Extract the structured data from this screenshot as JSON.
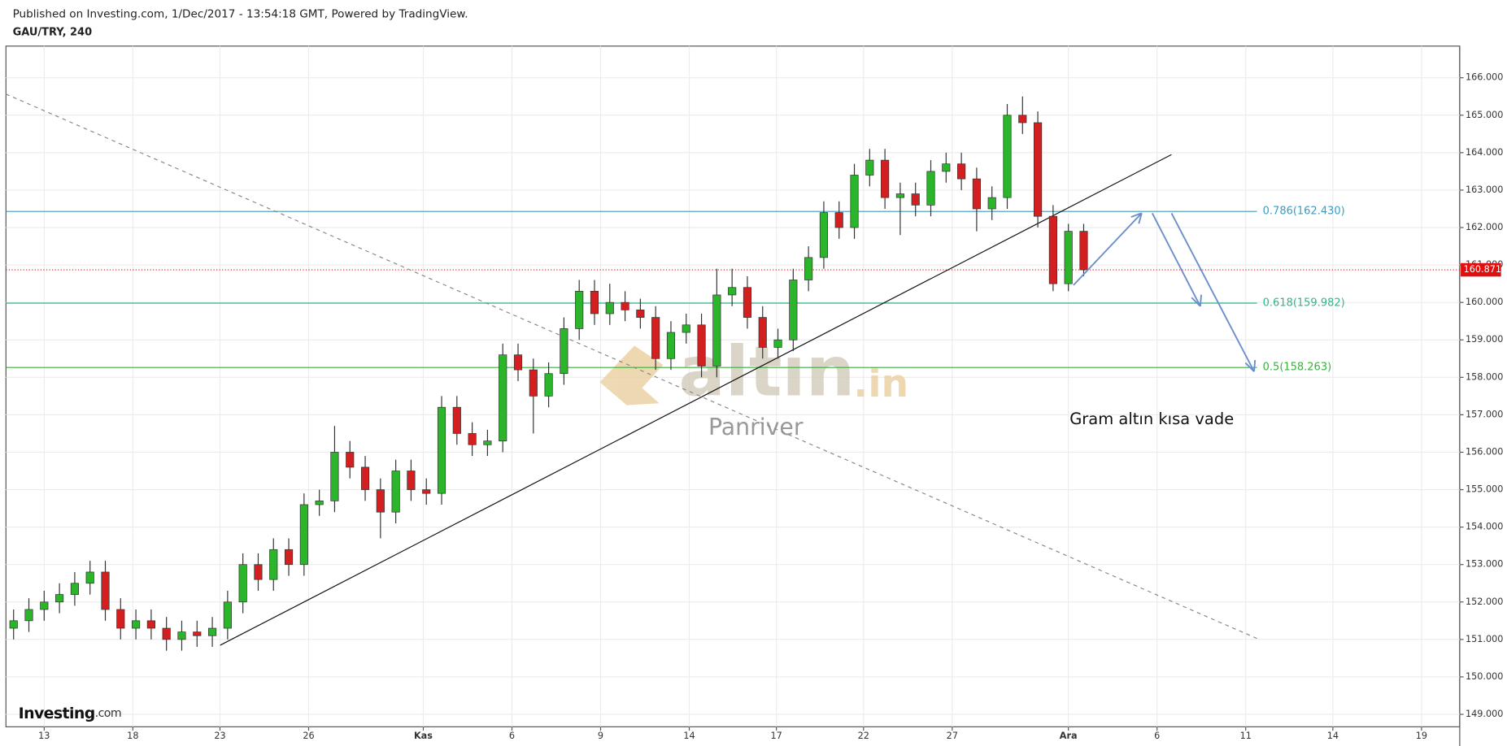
{
  "header": {
    "published": "Published on Investing.com, 1/Dec/2017 - 13:54:18 GMT, Powered by TradingView.",
    "symbol": "GAU/TRY, 240"
  },
  "chart_data": {
    "type": "candlestick",
    "x": [
      -2,
      -1,
      0,
      1,
      2,
      3,
      4,
      5,
      6,
      7,
      8,
      9,
      10,
      11,
      12,
      13,
      14,
      15,
      16,
      17,
      18,
      19,
      20,
      21,
      22,
      23,
      24,
      25,
      26,
      27,
      28,
      29,
      30,
      31,
      32,
      33,
      34,
      35,
      36,
      37,
      38,
      39,
      40,
      41,
      42,
      43,
      44,
      45,
      46,
      47,
      48,
      49,
      50,
      51,
      52,
      53,
      54,
      55,
      56,
      57,
      58,
      59,
      60,
      61,
      62,
      63,
      64,
      65,
      66,
      67,
      68
    ],
    "open": [
      151.3,
      151.5,
      151.8,
      152.0,
      152.2,
      152.5,
      152.8,
      151.8,
      151.3,
      151.5,
      151.3,
      151.0,
      151.2,
      151.1,
      151.3,
      152.0,
      153.0,
      152.6,
      153.4,
      153.0,
      154.6,
      154.7,
      156.0,
      155.6,
      155.0,
      154.4,
      155.5,
      155.0,
      154.9,
      157.2,
      156.5,
      156.2,
      156.3,
      158.6,
      158.2,
      157.5,
      158.1,
      159.3,
      160.3,
      159.7,
      160.0,
      159.8,
      159.6,
      158.5,
      159.2,
      159.4,
      158.3,
      160.2,
      160.4,
      159.6,
      158.8,
      159.0,
      160.6,
      161.2,
      162.4,
      162.0,
      163.4,
      163.8,
      162.8,
      162.9,
      162.6,
      163.5,
      163.7,
      163.3,
      162.5,
      162.8,
      165.0,
      164.8,
      162.3,
      160.5,
      161.9
    ],
    "high": [
      151.8,
      152.1,
      152.3,
      152.5,
      152.8,
      153.1,
      153.1,
      152.1,
      151.8,
      151.8,
      151.6,
      151.5,
      151.5,
      151.6,
      152.3,
      153.3,
      153.3,
      153.7,
      153.7,
      154.9,
      155.0,
      156.7,
      156.3,
      155.9,
      155.3,
      155.8,
      155.8,
      155.3,
      157.5,
      157.5,
      156.8,
      156.6,
      158.9,
      158.9,
      158.5,
      158.4,
      159.6,
      160.6,
      160.6,
      160.5,
      160.3,
      160.1,
      159.9,
      159.5,
      159.7,
      159.7,
      160.9,
      160.9,
      160.7,
      159.9,
      159.3,
      160.9,
      161.5,
      162.7,
      162.7,
      163.7,
      164.1,
      164.1,
      163.2,
      163.2,
      163.8,
      164.0,
      164.0,
      163.6,
      163.1,
      165.3,
      165.5,
      165.1,
      162.6,
      162.1,
      162.1
    ],
    "low": [
      151.0,
      151.2,
      151.5,
      151.7,
      151.9,
      152.2,
      151.5,
      151.0,
      151.0,
      151.0,
      150.7,
      150.7,
      150.8,
      150.8,
      151.0,
      151.7,
      152.3,
      152.3,
      152.7,
      152.7,
      154.3,
      154.4,
      155.3,
      154.7,
      153.7,
      154.1,
      154.7,
      154.6,
      154.6,
      156.2,
      155.9,
      155.9,
      156.0,
      157.9,
      156.5,
      157.2,
      157.8,
      159.0,
      159.4,
      159.4,
      159.5,
      159.3,
      158.2,
      158.2,
      158.9,
      158.0,
      158.0,
      159.9,
      159.3,
      158.5,
      158.5,
      158.7,
      160.3,
      160.9,
      161.7,
      161.7,
      163.1,
      162.5,
      161.8,
      162.3,
      162.3,
      163.2,
      163.0,
      161.9,
      162.2,
      162.5,
      164.5,
      162.0,
      160.3,
      160.3,
      160.7
    ],
    "close": [
      151.5,
      151.8,
      152.0,
      152.2,
      152.5,
      152.8,
      151.8,
      151.3,
      151.5,
      151.3,
      151.0,
      151.2,
      151.1,
      151.3,
      152.0,
      153.0,
      152.6,
      153.4,
      153.0,
      154.6,
      154.7,
      156.0,
      155.6,
      155.0,
      154.4,
      155.5,
      155.0,
      154.9,
      157.2,
      156.5,
      156.2,
      156.3,
      158.6,
      158.2,
      157.5,
      158.1,
      159.3,
      160.3,
      159.7,
      160.0,
      159.8,
      159.6,
      158.5,
      159.2,
      159.4,
      158.3,
      160.2,
      160.4,
      159.6,
      158.8,
      159.0,
      160.6,
      161.2,
      162.4,
      162.0,
      163.4,
      163.8,
      162.8,
      162.9,
      162.6,
      163.5,
      163.7,
      163.3,
      162.5,
      162.8,
      165.0,
      164.8,
      162.3,
      160.5,
      161.9,
      160.871
    ],
    "up_color": "#2ab52a",
    "down_color": "#d31f1f",
    "xlim": [
      -2.5,
      92.6
    ],
    "xticks": [
      {
        "value": 0,
        "label": "13"
      },
      {
        "value": 5.8,
        "label": "18"
      },
      {
        "value": 11.5,
        "label": "23"
      },
      {
        "value": 17.3,
        "label": "26"
      },
      {
        "value": 24.8,
        "label": "Kas"
      },
      {
        "value": 30.6,
        "label": "6"
      },
      {
        "value": 36.4,
        "label": "9"
      },
      {
        "value": 42.2,
        "label": "14"
      },
      {
        "value": 47.9,
        "label": "17"
      },
      {
        "value": 53.6,
        "label": "22"
      },
      {
        "value": 59.4,
        "label": "27"
      },
      {
        "value": 67.0,
        "label": "Ara"
      },
      {
        "value": 72.8,
        "label": "6"
      },
      {
        "value": 78.6,
        "label": "11"
      },
      {
        "value": 84.3,
        "label": "14"
      },
      {
        "value": 90.1,
        "label": "19"
      }
    ],
    "ylim": [
      148.667,
      166.846
    ],
    "yticks": [
      {
        "value": 149,
        "label": "149.000"
      },
      {
        "value": 150,
        "label": "150.000"
      },
      {
        "value": 151,
        "label": "151.000"
      },
      {
        "value": 152,
        "label": "152.000"
      },
      {
        "value": 153,
        "label": "153.000"
      },
      {
        "value": 154,
        "label": "154.000"
      },
      {
        "value": 155,
        "label": "155.000"
      },
      {
        "value": 156,
        "label": "156.000"
      },
      {
        "value": 157,
        "label": "157.000"
      },
      {
        "value": 158,
        "label": "158.000"
      },
      {
        "value": 159,
        "label": "159.000"
      },
      {
        "value": 160,
        "label": "160.000"
      },
      {
        "value": 161,
        "label": "161.000"
      },
      {
        "value": 162,
        "label": "162.000"
      },
      {
        "value": 163,
        "label": "163.000"
      },
      {
        "value": 164,
        "label": "164.000"
      },
      {
        "value": 165,
        "label": "165.000"
      },
      {
        "value": 166,
        "label": "166.000"
      }
    ],
    "grid": true,
    "levels": [
      {
        "value": 162.43,
        "label": "0.786(162.430)",
        "color": "#3b9bc2"
      },
      {
        "value": 159.982,
        "label": "0.618(159.982)",
        "color": "#2fb58a"
      },
      {
        "value": 158.263,
        "label": "0.5(158.263)",
        "color": "#38b03c"
      }
    ],
    "last_price": 160.871,
    "last_price_color": "#e01010",
    "annotation": "Gram altın kısa vade"
  },
  "watermark": {
    "brand": "altın",
    "suffix": ".in",
    "author": "Panriver"
  },
  "logo": {
    "brand": "Investing",
    "suffix": ".com"
  }
}
